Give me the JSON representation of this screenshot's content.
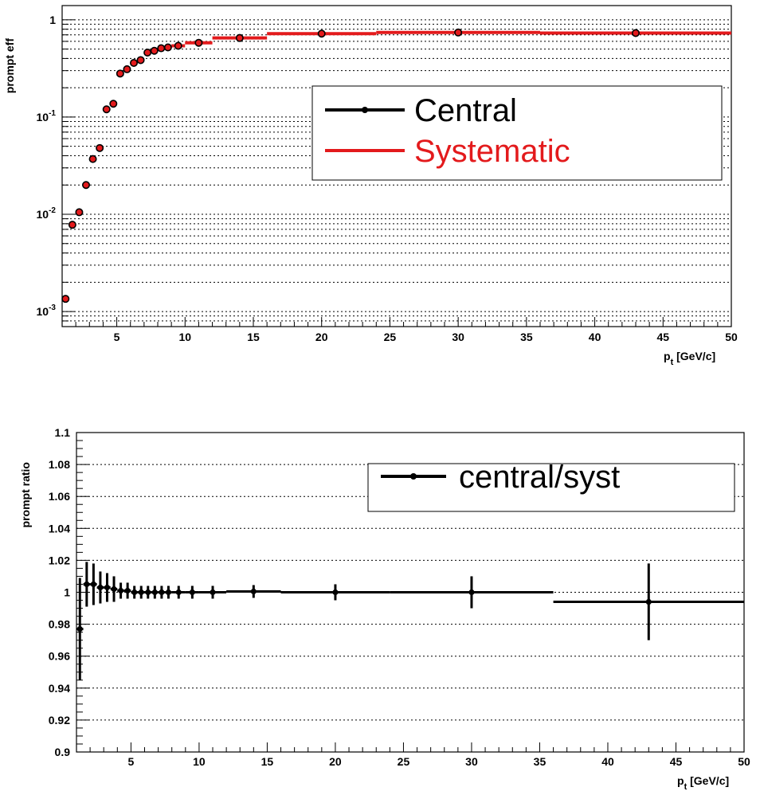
{
  "chart_data": [
    {
      "type": "scatter",
      "xlabel_main": "p",
      "xlabel_sub": "t",
      "xlabel_rest": " [GeV/c]",
      "ylabel": "prompt eff",
      "xlim": [
        1,
        50
      ],
      "ylim": [
        0.0007,
        1.4
      ],
      "log_y": true,
      "grid_y": true,
      "x_ticks": [
        5,
        10,
        15,
        20,
        25,
        30,
        35,
        40,
        45,
        50
      ],
      "y_ticks": [
        {
          "value": 0.001,
          "base": "10",
          "exp": "-3"
        },
        {
          "value": 0.01,
          "base": "10",
          "exp": "-2"
        },
        {
          "value": 0.1,
          "base": "10",
          "exp": "-1"
        },
        {
          "value": 1,
          "base": "1",
          "exp": ""
        }
      ],
      "legend": {
        "position": "top-right",
        "entries": [
          {
            "label": "Central",
            "color": "#000000",
            "marker": "point"
          },
          {
            "label": "Systematic",
            "color": "#e31a1c",
            "marker": "line"
          }
        ]
      },
      "series": [
        {
          "name": "Central",
          "color": "#000000",
          "points": [
            {
              "x": 1.25,
              "y": 0.00135
            },
            {
              "x": 1.75,
              "y": 0.0078
            },
            {
              "x": 2.25,
              "y": 0.0105
            },
            {
              "x": 2.75,
              "y": 0.02
            },
            {
              "x": 3.25,
              "y": 0.037
            },
            {
              "x": 3.75,
              "y": 0.048
            },
            {
              "x": 4.25,
              "y": 0.12
            },
            {
              "x": 4.75,
              "y": 0.137
            },
            {
              "x": 5.25,
              "y": 0.28
            },
            {
              "x": 5.75,
              "y": 0.31
            },
            {
              "x": 6.25,
              "y": 0.36
            },
            {
              "x": 6.75,
              "y": 0.385
            },
            {
              "x": 7.25,
              "y": 0.46
            },
            {
              "x": 7.75,
              "y": 0.48
            },
            {
              "x": 8.25,
              "y": 0.51
            },
            {
              "x": 8.75,
              "y": 0.52
            },
            {
              "x": 9.5,
              "y": 0.54
            },
            {
              "x": 11,
              "y": 0.58
            },
            {
              "x": 14,
              "y": 0.65
            },
            {
              "x": 20,
              "y": 0.72
            },
            {
              "x": 30,
              "y": 0.74
            },
            {
              "x": 43,
              "y": 0.73
            }
          ]
        },
        {
          "name": "Systematic",
          "color": "#e31a1c",
          "bins": [
            {
              "x0": 1,
              "x1": 1.5,
              "y": 0.00135
            },
            {
              "x0": 1.5,
              "x1": 2,
              "y": 0.0078
            },
            {
              "x0": 2,
              "x1": 2.5,
              "y": 0.0105
            },
            {
              "x0": 2.5,
              "x1": 3,
              "y": 0.02
            },
            {
              "x0": 3,
              "x1": 3.5,
              "y": 0.037
            },
            {
              "x0": 3.5,
              "x1": 4,
              "y": 0.048
            },
            {
              "x0": 4,
              "x1": 4.5,
              "y": 0.12
            },
            {
              "x0": 4.5,
              "x1": 5,
              "y": 0.137
            },
            {
              "x0": 5,
              "x1": 5.5,
              "y": 0.28
            },
            {
              "x0": 5.5,
              "x1": 6,
              "y": 0.31
            },
            {
              "x0": 6,
              "x1": 6.5,
              "y": 0.36
            },
            {
              "x0": 6.5,
              "x1": 7,
              "y": 0.385
            },
            {
              "x0": 7,
              "x1": 7.5,
              "y": 0.46
            },
            {
              "x0": 7.5,
              "x1": 8,
              "y": 0.48
            },
            {
              "x0": 8,
              "x1": 8.5,
              "y": 0.51
            },
            {
              "x0": 8.5,
              "x1": 9,
              "y": 0.52
            },
            {
              "x0": 9,
              "x1": 10,
              "y": 0.54
            },
            {
              "x0": 10,
              "x1": 12,
              "y": 0.58
            },
            {
              "x0": 12,
              "x1": 16,
              "y": 0.65
            },
            {
              "x0": 16,
              "x1": 24,
              "y": 0.72
            },
            {
              "x0": 24,
              "x1": 36,
              "y": 0.74
            },
            {
              "x0": 36,
              "x1": 50,
              "y": 0.73
            }
          ]
        }
      ]
    },
    {
      "type": "scatter",
      "xlabel_main": "p",
      "xlabel_sub": "t",
      "xlabel_rest": " [GeV/c]",
      "ylabel": "prompt ratio",
      "xlim": [
        1,
        50
      ],
      "ylim": [
        0.9,
        1.1
      ],
      "log_y": false,
      "grid_y": true,
      "x_ticks": [
        5,
        10,
        15,
        20,
        25,
        30,
        35,
        40,
        45,
        50
      ],
      "y_ticks": [
        {
          "value": 0.9,
          "label": "0.9"
        },
        {
          "value": 0.92,
          "label": "0.92"
        },
        {
          "value": 0.94,
          "label": "0.94"
        },
        {
          "value": 0.96,
          "label": "0.96"
        },
        {
          "value": 0.98,
          "label": "0.98"
        },
        {
          "value": 1.0,
          "label": "1"
        },
        {
          "value": 1.02,
          "label": "1.02"
        },
        {
          "value": 1.04,
          "label": "1.04"
        },
        {
          "value": 1.06,
          "label": "1.06"
        },
        {
          "value": 1.08,
          "label": "1.08"
        },
        {
          "value": 1.1,
          "label": "1.1"
        }
      ],
      "legend": {
        "position": "top-right",
        "entries": [
          {
            "label": "central/syst",
            "color": "#000000",
            "marker": "point"
          }
        ]
      },
      "series": [
        {
          "name": "central/syst",
          "color": "#000000",
          "points": [
            {
              "x": 1.25,
              "x0": 1,
              "x1": 1.5,
              "y": 0.977,
              "err": 0.032
            },
            {
              "x": 1.75,
              "x0": 1.5,
              "x1": 2,
              "y": 1.005,
              "err": 0.014
            },
            {
              "x": 2.25,
              "x0": 2,
              "x1": 2.5,
              "y": 1.005,
              "err": 0.013
            },
            {
              "x": 2.75,
              "x0": 2.5,
              "x1": 3,
              "y": 1.003,
              "err": 0.01
            },
            {
              "x": 3.25,
              "x0": 3,
              "x1": 3.5,
              "y": 1.003,
              "err": 0.009
            },
            {
              "x": 3.75,
              "x0": 3.5,
              "x1": 4,
              "y": 1.002,
              "err": 0.008
            },
            {
              "x": 4.25,
              "x0": 4,
              "x1": 4.5,
              "y": 1.001,
              "err": 0.005
            },
            {
              "x": 4.75,
              "x0": 4.5,
              "x1": 5,
              "y": 1.001,
              "err": 0.005
            },
            {
              "x": 5.25,
              "x0": 5,
              "x1": 5.5,
              "y": 1.0,
              "err": 0.004
            },
            {
              "x": 5.75,
              "x0": 5.5,
              "x1": 6,
              "y": 1.0,
              "err": 0.004
            },
            {
              "x": 6.25,
              "x0": 6,
              "x1": 6.5,
              "y": 1.0,
              "err": 0.004
            },
            {
              "x": 6.75,
              "x0": 6.5,
              "x1": 7,
              "y": 1.0,
              "err": 0.004
            },
            {
              "x": 7.25,
              "x0": 7,
              "x1": 7.5,
              "y": 1.0,
              "err": 0.004
            },
            {
              "x": 7.75,
              "x0": 7.5,
              "x1": 8,
              "y": 1.0,
              "err": 0.004
            },
            {
              "x": 8.5,
              "x0": 8,
              "x1": 9,
              "y": 1.0,
              "err": 0.004
            },
            {
              "x": 9.5,
              "x0": 9,
              "x1": 10,
              "y": 1.0,
              "err": 0.004
            },
            {
              "x": 11,
              "x0": 10,
              "x1": 12,
              "y": 1.0,
              "err": 0.004
            },
            {
              "x": 14,
              "x0": 12,
              "x1": 16,
              "y": 1.0005,
              "err": 0.004
            },
            {
              "x": 20,
              "x0": 16,
              "x1": 24,
              "y": 1.0,
              "err": 0.005
            },
            {
              "x": 30,
              "x0": 24,
              "x1": 36,
              "y": 1.0,
              "err": 0.01
            },
            {
              "x": 43,
              "x0": 36,
              "x1": 50,
              "y": 0.994,
              "err": 0.024
            }
          ]
        }
      ]
    }
  ]
}
